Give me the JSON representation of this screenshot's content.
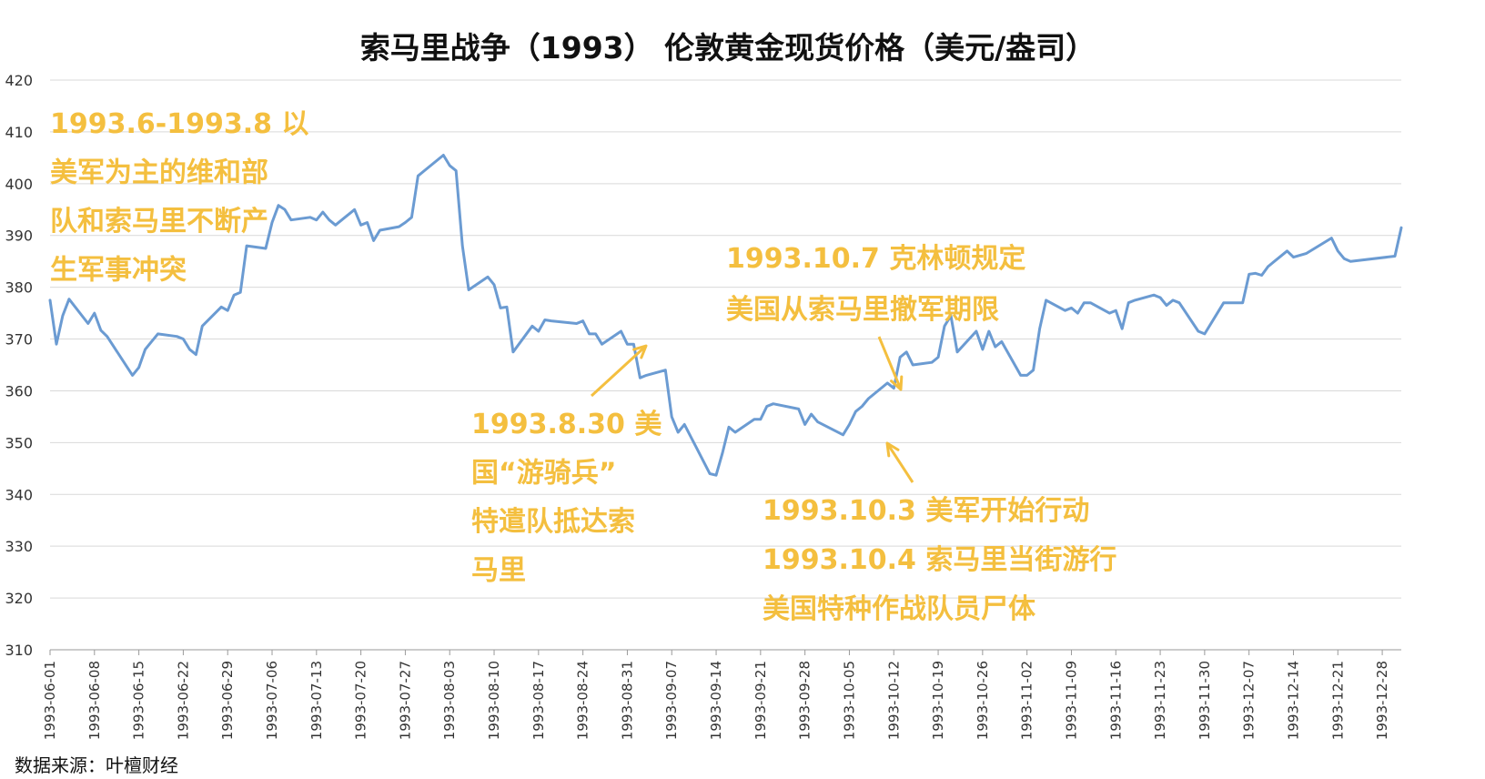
{
  "chart_data": {
    "type": "line",
    "title": "索马里战争（1993） 伦敦黄金现货价格（美元/盎司）",
    "xlabel": "",
    "ylabel": "",
    "ylim": [
      310,
      420
    ],
    "yticks": [
      310,
      320,
      330,
      340,
      350,
      360,
      370,
      380,
      390,
      400,
      410,
      420
    ],
    "grid": true,
    "legend": "none",
    "x_start": "1993-06-01",
    "x_end": "1993-12-31",
    "xtick_labels": [
      "1993-06-01",
      "1993-06-08",
      "1993-06-15",
      "1993-06-22",
      "1993-06-29",
      "1993-07-06",
      "1993-07-13",
      "1993-07-20",
      "1993-07-27",
      "1993-08-03",
      "1993-08-10",
      "1993-08-17",
      "1993-08-24",
      "1993-08-31",
      "1993-09-07",
      "1993-09-14",
      "1993-09-21",
      "1993-09-28",
      "1993-10-05",
      "1993-10-12",
      "1993-10-19",
      "1993-10-26",
      "1993-11-02",
      "1993-11-09",
      "1993-11-16",
      "1993-11-23",
      "1993-11-30",
      "1993-12-07",
      "1993-12-14",
      "1993-12-21",
      "1993-12-28"
    ],
    "series": [
      {
        "color": "#6b9bd2",
        "points": [
          [
            "1993-06-01",
            377.5
          ],
          [
            "1993-06-02",
            369.0
          ],
          [
            "1993-06-03",
            374.5
          ],
          [
            "1993-06-04",
            377.7
          ],
          [
            "1993-06-07",
            373.0
          ],
          [
            "1993-06-08",
            375.0
          ],
          [
            "1993-06-09",
            371.7
          ],
          [
            "1993-06-10",
            370.5
          ],
          [
            "1993-06-14",
            363.0
          ],
          [
            "1993-06-15",
            364.5
          ],
          [
            "1993-06-16",
            368.0
          ],
          [
            "1993-06-17",
            369.5
          ],
          [
            "1993-06-18",
            371.0
          ],
          [
            "1993-06-21",
            370.5
          ],
          [
            "1993-06-22",
            370.0
          ],
          [
            "1993-06-23",
            368.0
          ],
          [
            "1993-06-24",
            367.0
          ],
          [
            "1993-06-25",
            372.5
          ],
          [
            "1993-06-28",
            376.2
          ],
          [
            "1993-06-29",
            375.5
          ],
          [
            "1993-06-30",
            378.5
          ],
          [
            "1993-07-01",
            379.0
          ],
          [
            "1993-07-02",
            388.0
          ],
          [
            "1993-07-05",
            387.5
          ],
          [
            "1993-07-06",
            392.5
          ],
          [
            "1993-07-07",
            395.8
          ],
          [
            "1993-07-08",
            395.0
          ],
          [
            "1993-07-09",
            393.0
          ],
          [
            "1993-07-12",
            393.5
          ],
          [
            "1993-07-13",
            393.0
          ],
          [
            "1993-07-14",
            394.5
          ],
          [
            "1993-07-15",
            393.0
          ],
          [
            "1993-07-16",
            392.0
          ],
          [
            "1993-07-19",
            395.0
          ],
          [
            "1993-07-20",
            392.0
          ],
          [
            "1993-07-21",
            392.5
          ],
          [
            "1993-07-22",
            389.0
          ],
          [
            "1993-07-23",
            391.0
          ],
          [
            "1993-07-26",
            391.7
          ],
          [
            "1993-07-27",
            392.5
          ],
          [
            "1993-07-28",
            393.5
          ],
          [
            "1993-07-29",
            401.5
          ],
          [
            "1993-07-30",
            402.5
          ],
          [
            "1993-08-02",
            405.5
          ],
          [
            "1993-08-03",
            403.5
          ],
          [
            "1993-08-04",
            402.5
          ],
          [
            "1993-08-05",
            388.0
          ],
          [
            "1993-08-06",
            379.5
          ],
          [
            "1993-08-09",
            382.0
          ],
          [
            "1993-08-10",
            380.5
          ],
          [
            "1993-08-11",
            376.0
          ],
          [
            "1993-08-12",
            376.2
          ],
          [
            "1993-08-13",
            367.5
          ],
          [
            "1993-08-16",
            372.5
          ],
          [
            "1993-08-17",
            371.5
          ],
          [
            "1993-08-18",
            373.7
          ],
          [
            "1993-08-19",
            373.5
          ],
          [
            "1993-08-23",
            373.0
          ],
          [
            "1993-08-24",
            373.5
          ],
          [
            "1993-08-25",
            371.0
          ],
          [
            "1993-08-26",
            371.0
          ],
          [
            "1993-08-27",
            369.0
          ],
          [
            "1993-08-30",
            371.5
          ],
          [
            "1993-08-31",
            369.0
          ],
          [
            "1993-09-01",
            369.0
          ],
          [
            "1993-09-02",
            362.5
          ],
          [
            "1993-09-03",
            363.0
          ],
          [
            "1993-09-06",
            364.0
          ],
          [
            "1993-09-07",
            355.0
          ],
          [
            "1993-09-08",
            352.0
          ],
          [
            "1993-09-09",
            353.5
          ],
          [
            "1993-09-13",
            344.0
          ],
          [
            "1993-09-14",
            343.7
          ],
          [
            "1993-09-15",
            348.0
          ],
          [
            "1993-09-16",
            353.0
          ],
          [
            "1993-09-17",
            352.0
          ],
          [
            "1993-09-20",
            354.5
          ],
          [
            "1993-09-21",
            354.5
          ],
          [
            "1993-09-22",
            357.0
          ],
          [
            "1993-09-23",
            357.5
          ],
          [
            "1993-09-27",
            356.5
          ],
          [
            "1993-09-28",
            353.5
          ],
          [
            "1993-09-29",
            355.5
          ],
          [
            "1993-09-30",
            354.0
          ],
          [
            "1993-10-04",
            351.5
          ],
          [
            "1993-10-05",
            353.5
          ],
          [
            "1993-10-06",
            356.0
          ],
          [
            "1993-10-07",
            357.0
          ],
          [
            "1993-10-08",
            358.5
          ],
          [
            "1993-10-11",
            361.5
          ],
          [
            "1993-10-12",
            360.5
          ],
          [
            "1993-10-13",
            366.5
          ],
          [
            "1993-10-14",
            367.5
          ],
          [
            "1993-10-15",
            365.0
          ],
          [
            "1993-10-18",
            365.5
          ],
          [
            "1993-10-19",
            366.5
          ],
          [
            "1993-10-20",
            372.5
          ],
          [
            "1993-10-21",
            374.5
          ],
          [
            "1993-10-22",
            367.5
          ],
          [
            "1993-10-25",
            371.5
          ],
          [
            "1993-10-26",
            368.0
          ],
          [
            "1993-10-27",
            371.5
          ],
          [
            "1993-10-28",
            368.5
          ],
          [
            "1993-10-29",
            369.5
          ],
          [
            "1993-11-01",
            363.0
          ],
          [
            "1993-11-02",
            363.0
          ],
          [
            "1993-11-03",
            364.0
          ],
          [
            "1993-11-04",
            372.0
          ],
          [
            "1993-11-05",
            377.5
          ],
          [
            "1993-11-08",
            375.5
          ],
          [
            "1993-11-09",
            376.0
          ],
          [
            "1993-11-10",
            375.0
          ],
          [
            "1993-11-11",
            377.0
          ],
          [
            "1993-11-12",
            377.0
          ],
          [
            "1993-11-15",
            375.0
          ],
          [
            "1993-11-16",
            375.5
          ],
          [
            "1993-11-17",
            372.0
          ],
          [
            "1993-11-18",
            377.0
          ],
          [
            "1993-11-19",
            377.5
          ],
          [
            "1993-11-22",
            378.5
          ],
          [
            "1993-11-23",
            378.0
          ],
          [
            "1993-11-24",
            376.5
          ],
          [
            "1993-11-25",
            377.5
          ],
          [
            "1993-11-26",
            377.0
          ],
          [
            "1993-11-29",
            371.5
          ],
          [
            "1993-11-30",
            371.0
          ],
          [
            "1993-12-03",
            377.0
          ],
          [
            "1993-12-06",
            377.0
          ],
          [
            "1993-12-07",
            382.5
          ],
          [
            "1993-12-08",
            382.7
          ],
          [
            "1993-12-09",
            382.3
          ],
          [
            "1993-12-10",
            384.0
          ],
          [
            "1993-12-13",
            387.0
          ],
          [
            "1993-12-14",
            385.8
          ],
          [
            "1993-12-16",
            386.5
          ],
          [
            "1993-12-20",
            389.5
          ],
          [
            "1993-12-21",
            387.0
          ],
          [
            "1993-12-22",
            385.5
          ],
          [
            "1993-12-23",
            385.0
          ],
          [
            "1993-12-30",
            386.0
          ],
          [
            "1993-12-31",
            391.5
          ]
        ]
      }
    ],
    "annotations": [
      {
        "lines": [
          "1993.6-1993.8 以",
          "美军为主的维和部",
          "队和索马里不断产",
          "生军事冲突"
        ]
      },
      {
        "lines": [
          "1993.8.30 美",
          "国“游骑兵”",
          "特遣队抵达索",
          "马里"
        ]
      },
      {
        "lines": [
          "1993.10.7 克林顿规定",
          "美国从索马里撤军期限"
        ]
      },
      {
        "lines": [
          "1993.10.3 美军开始行动",
          "1993.10.4 索马里当街游行",
          "美国特种作战队员尸体"
        ]
      }
    ],
    "annotation_color": "#f4bf3f"
  },
  "footer": {
    "source": "数据来源：叶檀财经"
  }
}
